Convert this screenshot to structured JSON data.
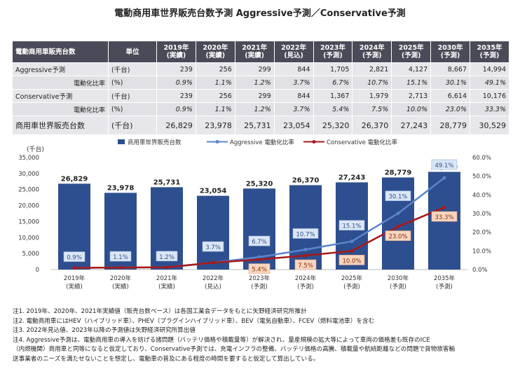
{
  "title": "電動商用車世界販売台数予測 Aggressive予測／Conservative予測",
  "table": {
    "header": [
      "電動商用車販売台数",
      "単位",
      "2019年\n(実績)",
      "2020年\n(実績)",
      "2021年\n(実績)",
      "2022年\n(見込)",
      "2023年\n(予測)",
      "2024年\n(予測)",
      "2025年\n(予測)",
      "2030年\n(予測)",
      "2035年\n(予測)"
    ],
    "rows": [
      {
        "label": "Aggressive予測",
        "unit": "(千台)",
        "values": [
          "239",
          "256",
          "299",
          "844",
          "1,705",
          "2,821",
          "4,127",
          "8,667",
          "14,994"
        ],
        "kind": "main"
      },
      {
        "label": "電動化比率",
        "unit": "(%)",
        "values": [
          "0.9%",
          "1.1%",
          "1.2%",
          "3.7%",
          "6.7%",
          "10.7%",
          "15.1%",
          "30.1%",
          "49.1%"
        ],
        "kind": "sub"
      },
      {
        "label": "Conservative予測",
        "unit": "(千台)",
        "values": [
          "239",
          "256",
          "299",
          "844",
          "1,367",
          "1,979",
          "2,713",
          "6,614",
          "10,176"
        ],
        "kind": "main"
      },
      {
        "label": "電動化比率",
        "unit": "(%)",
        "values": [
          "0.9%",
          "1.1%",
          "1.2%",
          "3.7%",
          "5.4%",
          "7.5%",
          "10.0%",
          "23.0%",
          "33.3%"
        ],
        "kind": "sub"
      },
      {
        "label": "商用車世界販売台数",
        "unit": "(千台)",
        "values": [
          "26,829",
          "23,978",
          "25,731",
          "23,054",
          "25,320",
          "26,370",
          "27,243",
          "28,779",
          "30,529"
        ],
        "kind": "total"
      }
    ]
  },
  "chart_data": {
    "type": "bar",
    "categories": [
      "2019年\n(実績)",
      "2020年\n(実績)",
      "2021年\n(実績)",
      "2022年\n(見込)",
      "2023年\n(予測)",
      "2024年\n(予測)",
      "2025年\n(予測)",
      "2030年\n(予測)",
      "2035年\n(予測)"
    ],
    "series": [
      {
        "name": "商用車世界販売台数",
        "type": "bar",
        "axis": "left",
        "values": [
          26829,
          23978,
          25731,
          23054,
          25320,
          26370,
          27243,
          28779,
          30529
        ],
        "labels": [
          "26,829",
          "23,978",
          "25,731",
          "23,054",
          "25,320",
          "26,370",
          "27,243",
          "28,779",
          "30,529"
        ],
        "color": "#2e4f8f"
      },
      {
        "name": "Aggressive 電動化比率",
        "type": "line",
        "axis": "right",
        "values": [
          0.9,
          1.1,
          1.2,
          3.7,
          6.7,
          10.7,
          15.1,
          30.1,
          49.1
        ],
        "labels": [
          "0.9%",
          "1.1%",
          "1.2%",
          "3.7%",
          "6.7%",
          "10.7%",
          "15.1%",
          "30.1%",
          "49.1%"
        ],
        "color": "#5b85cc"
      },
      {
        "name": "Conservative 電動化比率",
        "type": "line",
        "axis": "right",
        "values": [
          0.9,
          1.1,
          1.2,
          3.7,
          5.4,
          7.5,
          10.0,
          23.0,
          33.3
        ],
        "labels": [
          "0.9%",
          "1.1%",
          "1.2%",
          "3.7%",
          "5.4%",
          "7.5%",
          "10.0%",
          "23.0%",
          "33.3%"
        ],
        "color": "#a81818"
      }
    ],
    "ylabel": "(千台)",
    "ylim": [
      0,
      35000
    ],
    "yticks": [
      "0",
      "5,000",
      "10,000",
      "15,000",
      "20,000",
      "25,000",
      "30,000",
      "35,000"
    ],
    "y2lim": [
      0,
      60
    ],
    "y2ticks": [
      "0.0%",
      "10.0%",
      "20.0%",
      "30.0%",
      "40.0%",
      "50.0%",
      "60.0%"
    ],
    "legend": "top-center",
    "grid": false
  },
  "notes": [
    "注1. 2019年、2020年、2021年実績値（販売台数ベース）は各国工業会データをもとに矢野経済研究所推計",
    "注2. 電動商用車にはHEV（ハイブリッド車）、PHEV（プラグインハイブリッド車）、BEV（電気自動車）、FCEV（燃料電池車）を含む",
    "注3. 2022年見込値、2023年以降の予測値は矢野経済研究所算出値",
    "注4. Aggressive予測は、電動商用車の導入を妨げる諸問題（バッテリ価格や積載量等）が解決され、量産規模の拡大等によって車両の価格差も既存のICE",
    "（内燃機関）商用車と同等になると仮定しており、Conservative予測では、充電インフラの整備、バッテリ価格の高騰、積載量や航続距離などの問題で貨物旅客輸",
    "送事業者のニーズを満たせないことを想定し、電動車の普及にある程度の時間を要すると仮定して算出している。"
  ]
}
